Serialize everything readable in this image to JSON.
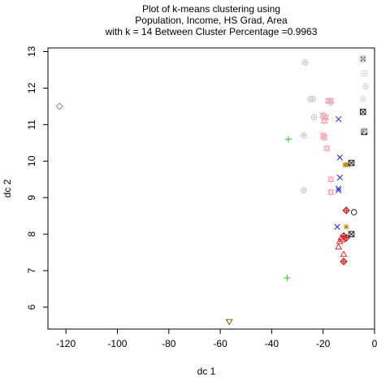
{
  "chart_data": {
    "type": "scatter",
    "title": "Plot of k-means clustering using",
    "subtitle_1": "Population, Income, HS Grad, Area",
    "subtitle_2": "with  k = 14 Between Cluster Percentage =0.9963",
    "xlabel": "dc 1",
    "ylabel": "dc 2",
    "xlim": [
      -127,
      0
    ],
    "ylim": [
      5.4,
      13.1
    ],
    "x_ticks": [
      -120,
      -100,
      -80,
      -60,
      -40,
      -20,
      0
    ],
    "y_ticks": [
      6,
      7,
      8,
      9,
      10,
      11,
      12,
      13
    ],
    "grid": false,
    "points": [
      {
        "x": -122.5,
        "y": 11.5,
        "shape": "diamond",
        "color": "#8c8c8c"
      },
      {
        "x": -56.5,
        "y": 5.6,
        "shape": "triangle-down",
        "color": "#8b5a00"
      },
      {
        "x": -33.5,
        "y": 10.6,
        "shape": "plus",
        "color": "#22cc22"
      },
      {
        "x": -34.0,
        "y": 6.8,
        "shape": "plus",
        "color": "#22cc22"
      },
      {
        "x": -25.0,
        "y": 11.7,
        "shape": "circle-plus",
        "color": "#c8c8c8"
      },
      {
        "x": -24.0,
        "y": 11.7,
        "shape": "circle-plus",
        "color": "#c8c8c8"
      },
      {
        "x": -27.0,
        "y": 12.7,
        "shape": "circle-plus",
        "color": "#c8c8c8"
      },
      {
        "x": -23.5,
        "y": 11.2,
        "shape": "circle-plus",
        "color": "#c8c8c8"
      },
      {
        "x": -27.5,
        "y": 10.7,
        "shape": "circle-plus",
        "color": "#c8c8c8"
      },
      {
        "x": -27.5,
        "y": 9.2,
        "shape": "circle-plus",
        "color": "#c8c8c8"
      },
      {
        "x": -17.0,
        "y": 11.6,
        "shape": "circle-plus",
        "color": "#c8c8c8"
      },
      {
        "x": -18.0,
        "y": 11.65,
        "shape": "star-david",
        "color": "#f4a6b4"
      },
      {
        "x": -17.0,
        "y": 11.65,
        "shape": "star-david",
        "color": "#f4a6b4"
      },
      {
        "x": -20.0,
        "y": 11.25,
        "shape": "star-david",
        "color": "#f4a6b4"
      },
      {
        "x": -19.5,
        "y": 11.1,
        "shape": "star-david",
        "color": "#f4a6b4"
      },
      {
        "x": -19.0,
        "y": 11.2,
        "shape": "star-david",
        "color": "#f4a6b4"
      },
      {
        "x": -20.0,
        "y": 10.7,
        "shape": "star-david",
        "color": "#f4a6b4"
      },
      {
        "x": -19.5,
        "y": 10.65,
        "shape": "star-david",
        "color": "#f4a6b4"
      },
      {
        "x": -18.5,
        "y": 10.35,
        "shape": "star-david",
        "color": "#f4a6b4"
      },
      {
        "x": -17.0,
        "y": 9.5,
        "shape": "star-david",
        "color": "#f4a6b4"
      },
      {
        "x": -17.0,
        "y": 9.15,
        "shape": "star-david",
        "color": "#f4a6b4"
      },
      {
        "x": -14.0,
        "y": 11.15,
        "shape": "x",
        "color": "#1f1fdd"
      },
      {
        "x": -13.5,
        "y": 10.1,
        "shape": "x",
        "color": "#1f1fdd"
      },
      {
        "x": -13.5,
        "y": 9.55,
        "shape": "x",
        "color": "#1f1fdd"
      },
      {
        "x": -14.0,
        "y": 9.25,
        "shape": "x",
        "color": "#1f1fdd"
      },
      {
        "x": -14.0,
        "y": 9.2,
        "shape": "x",
        "color": "#1f1fdd"
      },
      {
        "x": -14.5,
        "y": 8.2,
        "shape": "x",
        "color": "#1f1fdd"
      },
      {
        "x": -11.5,
        "y": 9.9,
        "shape": "asterisk",
        "color": "#b8860b"
      },
      {
        "x": -10.5,
        "y": 9.9,
        "shape": "asterisk",
        "color": "#b8860b"
      },
      {
        "x": -11.0,
        "y": 8.2,
        "shape": "asterisk",
        "color": "#b8860b"
      },
      {
        "x": -9.0,
        "y": 9.95,
        "shape": "square-x",
        "color": "#222222"
      },
      {
        "x": -9.0,
        "y": 8.0,
        "shape": "square-x",
        "color": "#222222"
      },
      {
        "x": -4.5,
        "y": 12.8,
        "shape": "square-x",
        "color": "#222222"
      },
      {
        "x": -4.5,
        "y": 11.35,
        "shape": "square-x",
        "color": "#222222"
      },
      {
        "x": -4.0,
        "y": 10.8,
        "shape": "square-x",
        "color": "#222222"
      },
      {
        "x": -8.0,
        "y": 8.6,
        "shape": "circle",
        "color": "#222222"
      },
      {
        "x": -4.5,
        "y": 11.7,
        "shape": "circle-x",
        "color": "#d8d8d8"
      },
      {
        "x": -3.5,
        "y": 12.05,
        "shape": "circle-plus",
        "color": "#d8d8d8"
      },
      {
        "x": -4.0,
        "y": 12.4,
        "shape": "square-plus",
        "color": "#d8d8d8"
      },
      {
        "x": -3.8,
        "y": 10.85,
        "shape": "circle-plus",
        "color": "#d8d8d8"
      },
      {
        "x": -4.5,
        "y": 12.8,
        "shape": "square-plus",
        "color": "#d8d8d8"
      },
      {
        "x": -11.0,
        "y": 8.65,
        "shape": "diamond-plus",
        "color": "#cc0000"
      },
      {
        "x": -12.0,
        "y": 7.95,
        "shape": "diamond-plus",
        "color": "#cc0000"
      },
      {
        "x": -11.0,
        "y": 7.9,
        "shape": "diamond-plus",
        "color": "#cc0000"
      },
      {
        "x": -12.0,
        "y": 7.25,
        "shape": "diamond-plus",
        "color": "#cc0000"
      },
      {
        "x": -13.0,
        "y": 7.9,
        "shape": "triangle-up",
        "color": "#e03030"
      },
      {
        "x": -13.5,
        "y": 7.8,
        "shape": "triangle-up",
        "color": "#e03030"
      },
      {
        "x": -14.0,
        "y": 7.65,
        "shape": "triangle-up",
        "color": "#e03030"
      },
      {
        "x": -12.0,
        "y": 7.45,
        "shape": "triangle-up",
        "color": "#e03030"
      },
      {
        "x": -12.5,
        "y": 7.85,
        "shape": "triangle-up",
        "color": "#e03030"
      }
    ]
  }
}
